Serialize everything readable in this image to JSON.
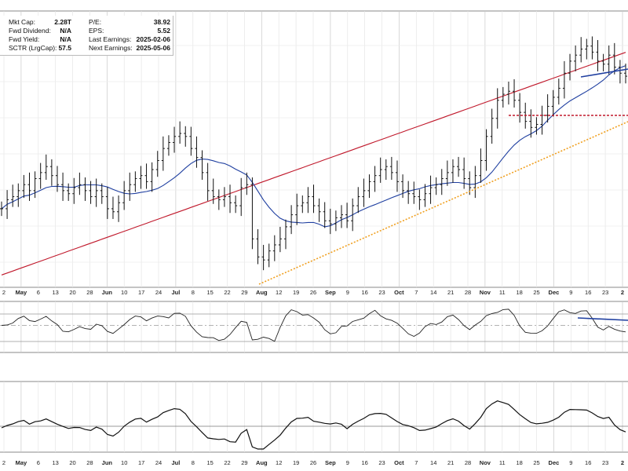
{
  "stats": {
    "left": [
      {
        "label": "Mkt Cap:",
        "value": "2.28T"
      },
      {
        "label": "Fwd Dividend:",
        "value": "N/A"
      },
      {
        "label": "Fwd Yield:",
        "value": "N/A"
      },
      {
        "label": "SCTR (LrgCap):",
        "value": "57.5"
      }
    ],
    "right": [
      {
        "label": "P/E:",
        "value": "38.92"
      },
      {
        "label": "EPS:",
        "value": "5.52"
      },
      {
        "label": "Last Earnings:",
        "value": "2025-02-06"
      },
      {
        "label": "Next Earnings:",
        "value": "2025-05-06"
      }
    ]
  },
  "chart_data": {
    "type": "line",
    "x_tick_labels": [
      {
        "label": "2",
        "bold": false
      },
      {
        "label": "May",
        "bold": true
      },
      {
        "label": "6",
        "bold": false
      },
      {
        "label": "13",
        "bold": false
      },
      {
        "label": "20",
        "bold": false
      },
      {
        "label": "28",
        "bold": false
      },
      {
        "label": "Jun",
        "bold": true
      },
      {
        "label": "10",
        "bold": false
      },
      {
        "label": "17",
        "bold": false
      },
      {
        "label": "24",
        "bold": false
      },
      {
        "label": "Jul",
        "bold": true
      },
      {
        "label": "8",
        "bold": false
      },
      {
        "label": "15",
        "bold": false
      },
      {
        "label": "22",
        "bold": false
      },
      {
        "label": "29",
        "bold": false
      },
      {
        "label": "Aug",
        "bold": true
      },
      {
        "label": "12",
        "bold": false
      },
      {
        "label": "19",
        "bold": false
      },
      {
        "label": "26",
        "bold": false
      },
      {
        "label": "Sep",
        "bold": true
      },
      {
        "label": "9",
        "bold": false
      },
      {
        "label": "16",
        "bold": false
      },
      {
        "label": "23",
        "bold": false
      },
      {
        "label": "Oct",
        "bold": true
      },
      {
        "label": "7",
        "bold": false
      },
      {
        "label": "14",
        "bold": false
      },
      {
        "label": "21",
        "bold": false
      },
      {
        "label": "28",
        "bold": false
      },
      {
        "label": "Nov",
        "bold": true
      },
      {
        "label": "11",
        "bold": false
      },
      {
        "label": "18",
        "bold": false
      },
      {
        "label": "25",
        "bold": false
      },
      {
        "label": "Dec",
        "bold": true
      },
      {
        "label": "9",
        "bold": false
      },
      {
        "label": "16",
        "bold": false
      },
      {
        "label": "23",
        "bold": false
      },
      {
        "label": "2",
        "bold": true
      }
    ],
    "price_series": {
      "type": "ohlc",
      "close_series_index_based": [
        100.0,
        101.5,
        102.0,
        103.0,
        104.0,
        103.0,
        105.0,
        106.0,
        107.0,
        105.5,
        104.0,
        103.0,
        102.5,
        103.5,
        104.0,
        103.0,
        102.0,
        103.0,
        102.0,
        100.0,
        99.5,
        101.0,
        103.0,
        104.0,
        105.0,
        105.5,
        104.5,
        106.5,
        108.0,
        110.0,
        111.0,
        112.0,
        112.5,
        112.0,
        110.0,
        108.5,
        106.0,
        103.0,
        102.0,
        101.5,
        102.0,
        101.0,
        100.5,
        103.5,
        104.0,
        95.0,
        92.0,
        91.5,
        93.0,
        94.0,
        95.0,
        97.0,
        99.0,
        100.5,
        101.0,
        102.0,
        100.5,
        99.5,
        98.0,
        97.5,
        98.5,
        99.0,
        98.0,
        100.5,
        102.0,
        103.0,
        104.5,
        105.5,
        106.5,
        107.0,
        106.0,
        104.5,
        103.0,
        102.5,
        102.0,
        101.5,
        102.5,
        103.5,
        104.0,
        105.0,
        106.0,
        107.0,
        106.5,
        105.0,
        103.5,
        105.5,
        108.0,
        112.0,
        115.0,
        118.0,
        119.0,
        119.5,
        118.0,
        116.0,
        114.5,
        113.5,
        114.0,
        115.5,
        117.0,
        118.5,
        120.0,
        122.5,
        124.5,
        125.5,
        126.5,
        127.0,
        126.0,
        124.5,
        124.0,
        125.5,
        123.5,
        122.5,
        122.0
      ]
    },
    "overlays": [
      {
        "type": "sma",
        "color": "#1f3fa0"
      },
      {
        "type": "sma",
        "color": "#c0182b"
      },
      {
        "type": "trendline",
        "color": "#f0a020",
        "style": "dotted"
      },
      {
        "type": "horizontal",
        "color": "#c0182b",
        "style": "dashed"
      },
      {
        "type": "trendline",
        "color": "#1f3fa0",
        "style": "solid"
      }
    ],
    "panels": [
      {
        "name": "",
        "type": "oscillator",
        "has_midline": true
      },
      {
        "name": "",
        "type": "line",
        "has_midline": true
      }
    ],
    "grid": true,
    "legend": ""
  }
}
